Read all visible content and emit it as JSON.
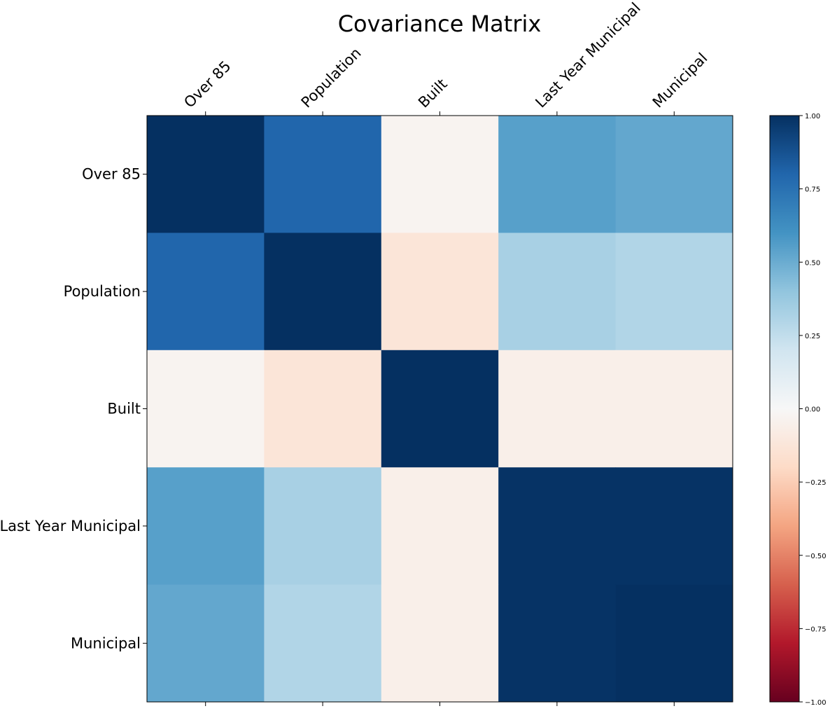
{
  "chart_data": {
    "type": "heatmap",
    "title": "Covariance Matrix",
    "x_labels": [
      "Over 85",
      "Population",
      "Built",
      "Last Year Municipal",
      "Municipal"
    ],
    "y_labels": [
      "Over 85",
      "Population",
      "Built",
      "Last Year Municipal",
      "Municipal"
    ],
    "values": [
      [
        1.0,
        0.8,
        -0.03,
        0.55,
        0.52
      ],
      [
        0.8,
        1.0,
        -0.13,
        0.33,
        0.3
      ],
      [
        -0.03,
        -0.13,
        1.0,
        -0.06,
        -0.06
      ],
      [
        0.55,
        0.33,
        -0.06,
        0.99,
        0.99
      ],
      [
        0.52,
        0.3,
        -0.06,
        0.99,
        1.0
      ]
    ],
    "colormap": "RdBu",
    "colorbar": {
      "vmin": -1.0,
      "vmax": 1.0,
      "ticks": [
        -1.0,
        -0.75,
        -0.5,
        -0.25,
        0.0,
        0.25,
        0.5,
        0.75,
        1.0
      ],
      "tick_labels": [
        "−1.00",
        "−0.75",
        "−0.50",
        "−0.25",
        "0.00",
        "0.25",
        "0.50",
        "0.75",
        "1.00"
      ]
    },
    "grid": false
  }
}
